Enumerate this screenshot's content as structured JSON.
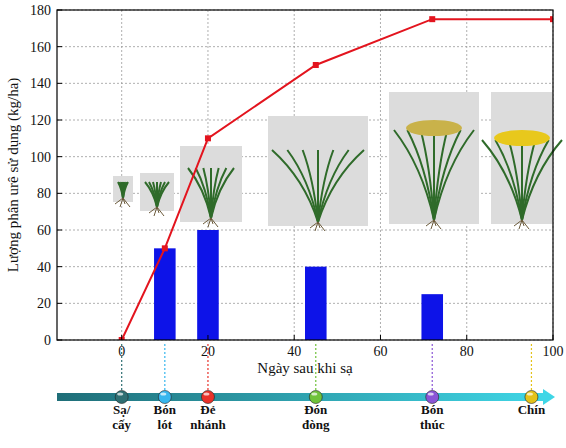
{
  "chart_data": {
    "type": "bar",
    "x_label": "Ngày sau khi sạ",
    "y_label": "Lượng phân urê sử dụng (kg/ha)",
    "xlim": [
      -15,
      100
    ],
    "xticks": [
      0,
      20,
      40,
      60,
      80,
      100
    ],
    "ylim": [
      0,
      180
    ],
    "yticks": [
      0,
      20,
      40,
      60,
      80,
      100,
      120,
      140,
      160,
      180
    ],
    "grid": true,
    "series": [
      {
        "type": "bar",
        "color": "#0d13e8",
        "x": [
          10,
          20,
          45,
          72
        ],
        "values": [
          50,
          60,
          40,
          25
        ]
      },
      {
        "type": "line",
        "color": "#e3141e",
        "marker": "square",
        "line_style": "solid",
        "x": [
          0,
          10,
          20,
          45,
          72,
          100
        ],
        "values": [
          0,
          50,
          110,
          150,
          175,
          175
        ]
      }
    ],
    "stages": [
      {
        "label": "Sạ/ cấy",
        "x": 0,
        "color": "#2f6f73"
      },
      {
        "label": "Bón lót",
        "x": 10,
        "color": "#37b6ee"
      },
      {
        "label": "Đẻ nhánh",
        "x": 20,
        "color": "#e8322a"
      },
      {
        "label": "Đón đòng",
        "x": 45,
        "color": "#6fc23a"
      },
      {
        "label": "Bón thúc",
        "x": 72,
        "color": "#8a55d6"
      },
      {
        "label": "Chín",
        "x": 95,
        "color": "#e3c21a"
      }
    ]
  }
}
